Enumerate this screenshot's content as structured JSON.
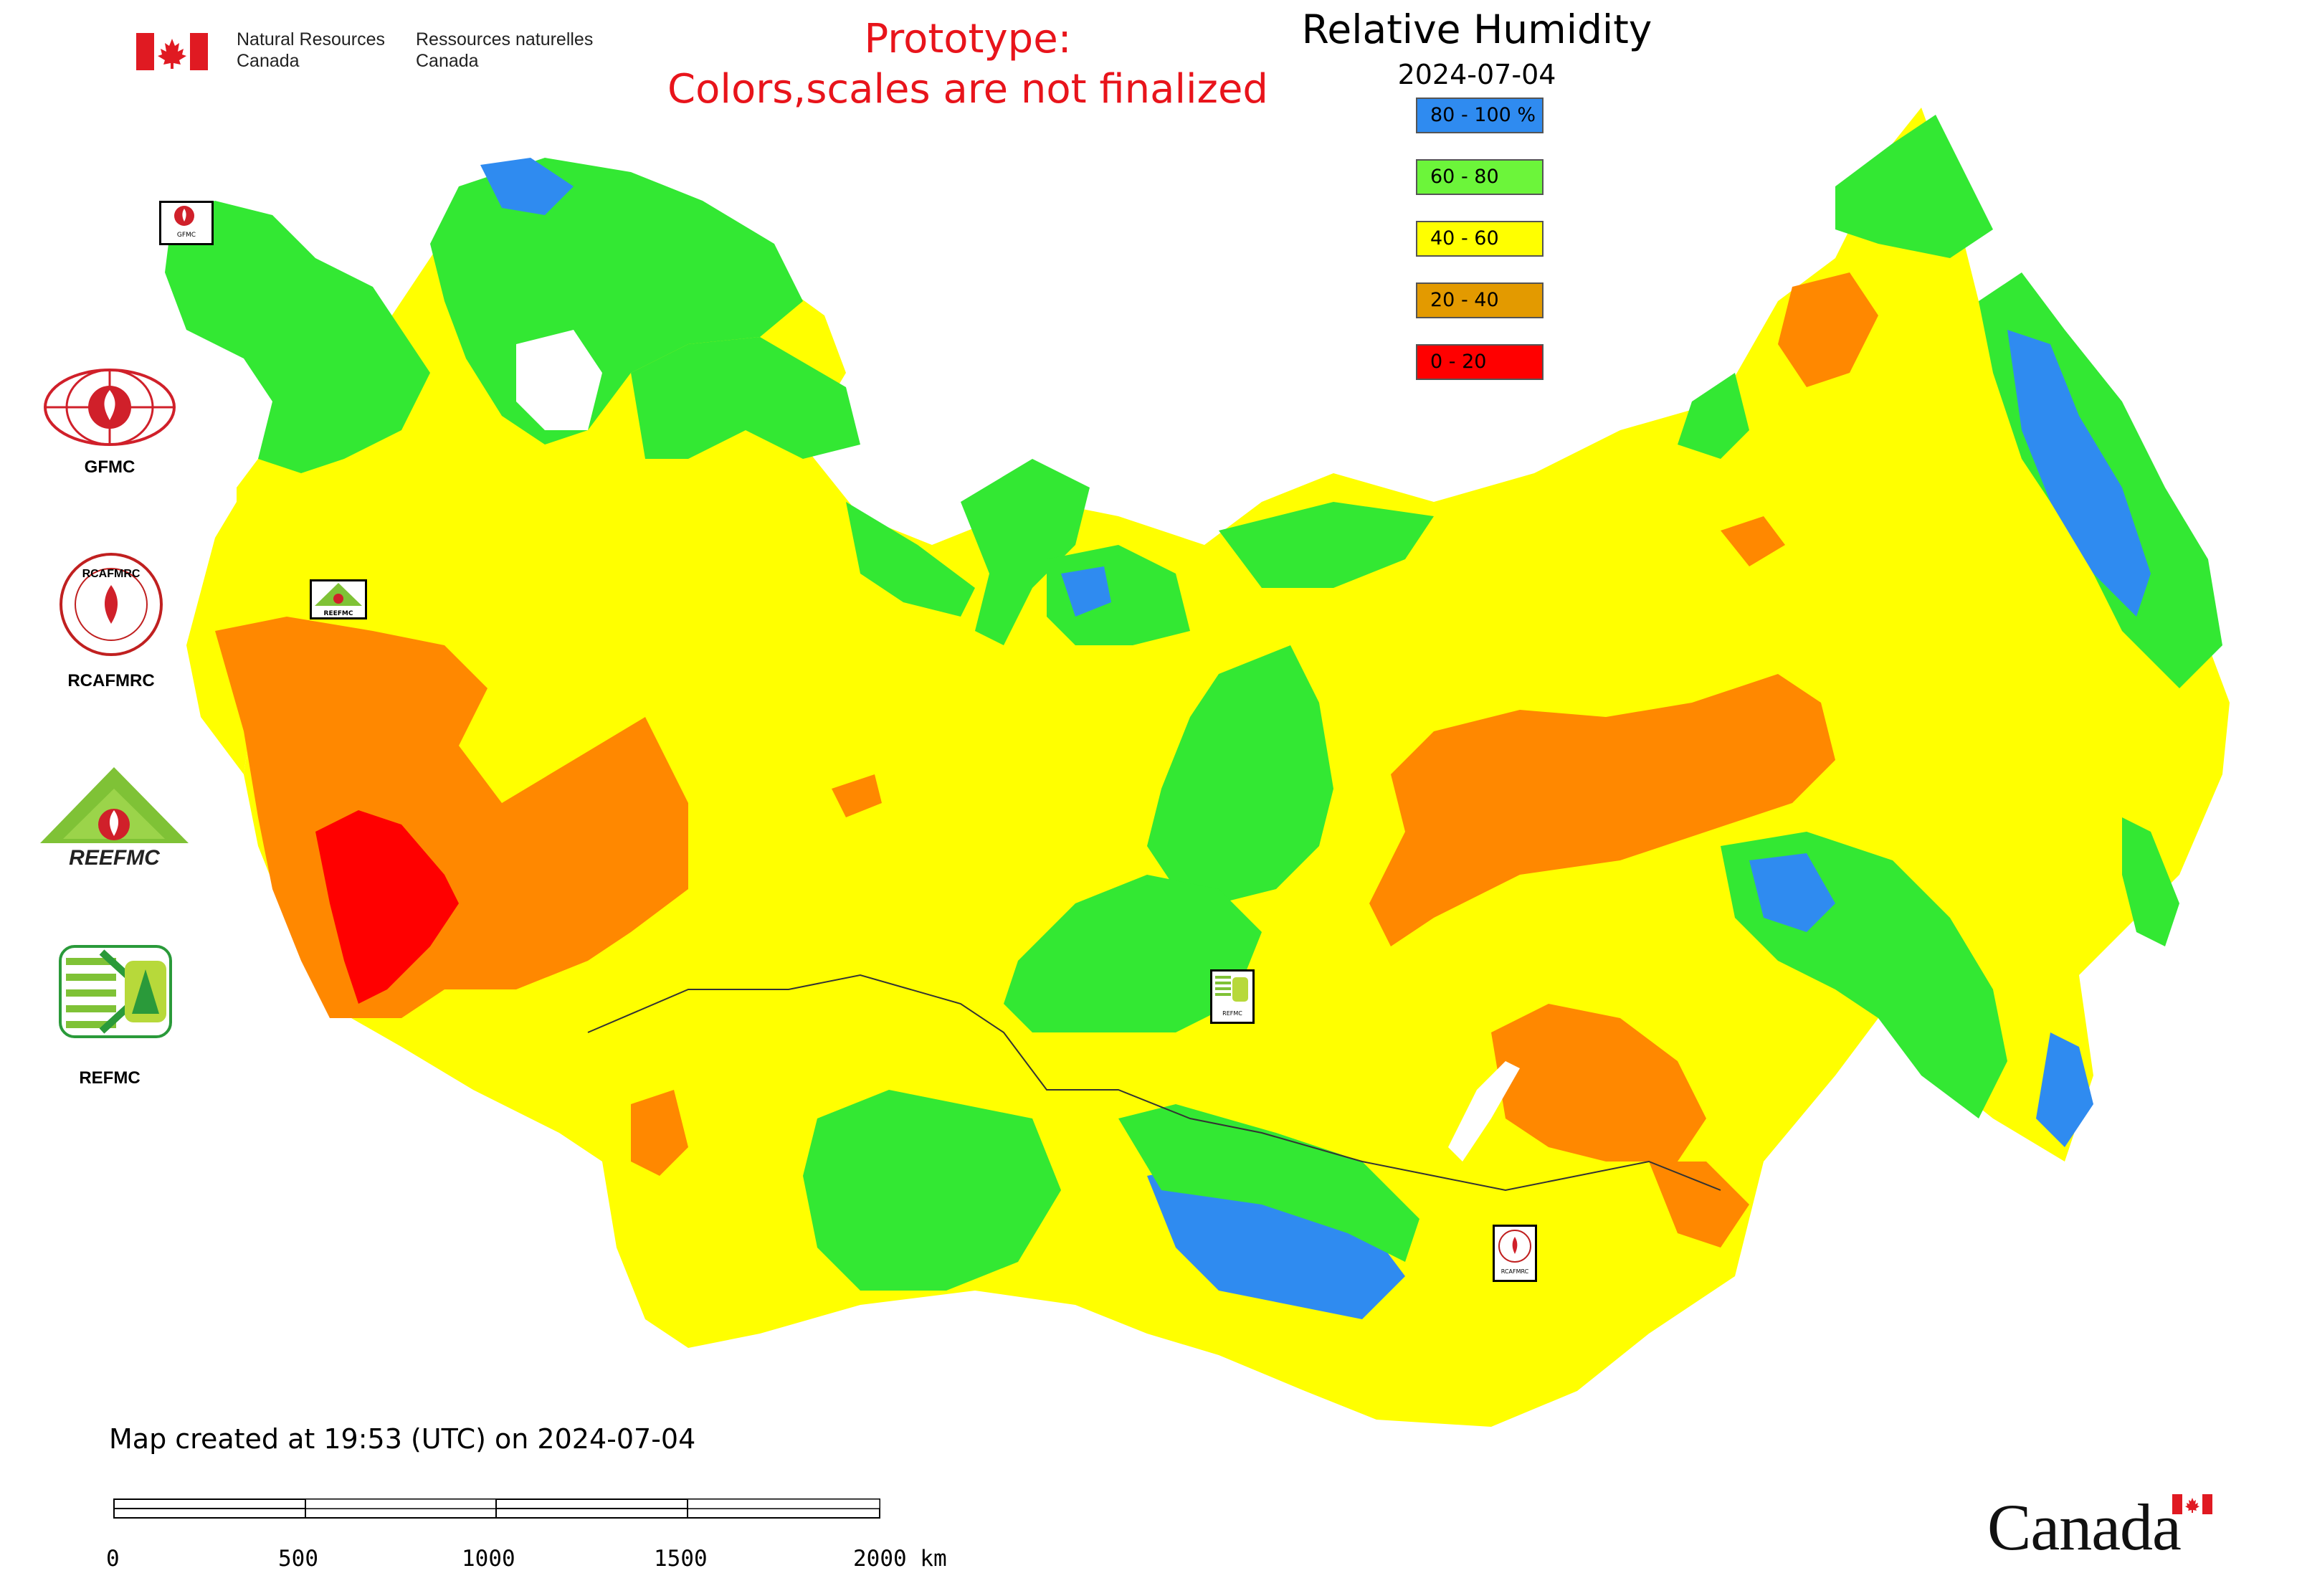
{
  "header": {
    "nrcan_en_line1": "Natural Resources",
    "nrcan_en_line2": "Canada",
    "nrcan_fr_line1": "Ressources naturelles",
    "nrcan_fr_line2": "Canada",
    "prototype_line1": "Prototype:",
    "prototype_line2": "Colors,scales are not finalized",
    "title": "Relative Humidity",
    "date": "2024-07-04"
  },
  "legend": [
    {
      "label": "80 - 100 %",
      "color": "#2f8bf0"
    },
    {
      "label": "60 - 80",
      "color": "#6cf53a"
    },
    {
      "label": "40 - 60",
      "color": "#ffff00"
    },
    {
      "label": "20 - 40",
      "color": "#e39a00"
    },
    {
      "label": "0 - 20",
      "color": "#ff0000"
    }
  ],
  "logos": {
    "gfmc": "GFMC",
    "rcafmrc": "RCAFMRC",
    "rcafmrc_inner": "RCAFMRC",
    "reefmc": "REEFMC",
    "refmc": "REFMC"
  },
  "map_markers": {
    "gfmc": "GFMC",
    "reefmc": "REEFMC",
    "refmc": "REFMC",
    "rcafmrc": "RCAFMRC"
  },
  "footer": {
    "created": "Map created at 19:53 (UTC) on 2024-07-04",
    "scale_ticks": [
      "0",
      "500",
      "1000",
      "1500",
      "2000 km"
    ],
    "wordmark": "Canada"
  },
  "colors": {
    "humidity_80_100": "#2f8bf0",
    "humidity_60_80": "#33e833",
    "humidity_40_60": "#ffff00",
    "humidity_20_40": "#ff8800",
    "humidity_0_20": "#ff0000",
    "canada_red": "#e01a22"
  }
}
